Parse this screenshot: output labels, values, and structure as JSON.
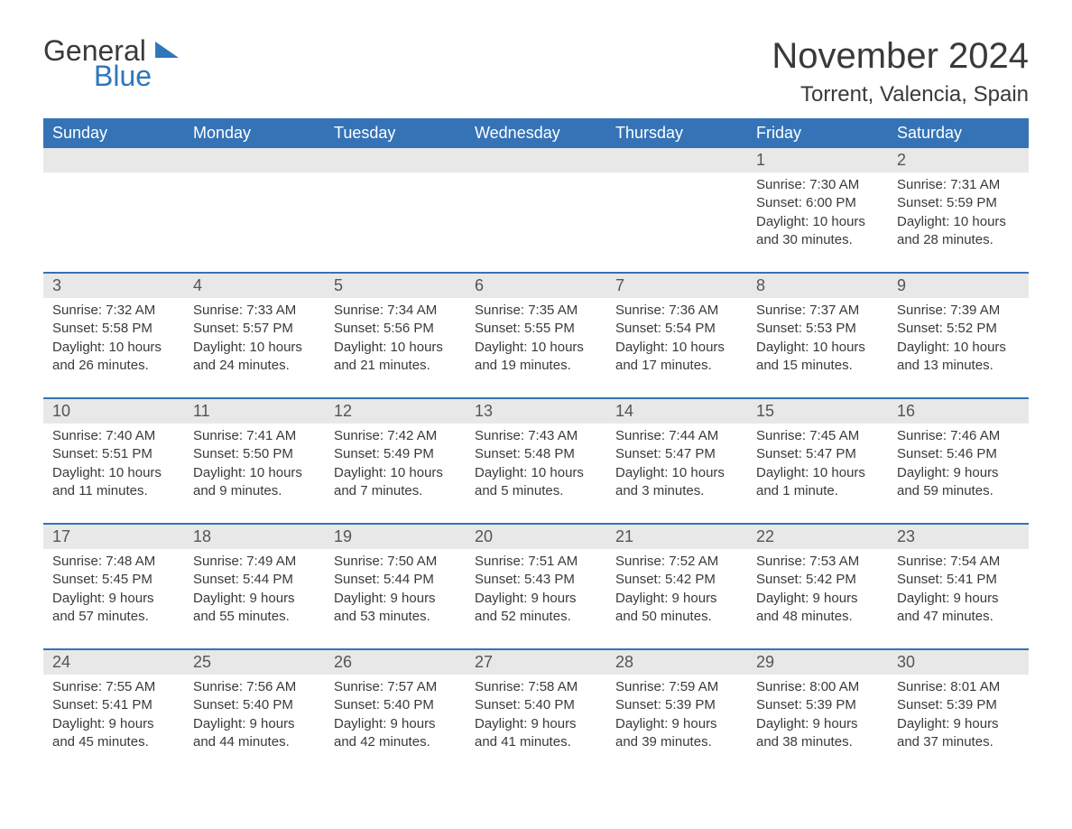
{
  "brand": {
    "line1": "General",
    "line2": "Blue",
    "accent_color": "#2f76bb"
  },
  "title": "November 2024",
  "location": "Torrent, Valencia, Spain",
  "colors": {
    "header_bg": "#3573b6",
    "header_text": "#ffffff",
    "daynum_bg": "#e8e8e8",
    "row_divider": "#3573b6",
    "body_text": "#3a3a3a",
    "background": "#ffffff"
  },
  "typography": {
    "title_fontsize": 40,
    "location_fontsize": 24,
    "weekday_fontsize": 18,
    "daynum_fontsize": 18,
    "body_fontsize": 15,
    "logo_fontsize": 32
  },
  "layout": {
    "columns": 7,
    "rows": 5,
    "leading_blanks": 5
  },
  "weekdays": [
    "Sunday",
    "Monday",
    "Tuesday",
    "Wednesday",
    "Thursday",
    "Friday",
    "Saturday"
  ],
  "weeks": [
    [
      null,
      null,
      null,
      null,
      null,
      {
        "day": "1",
        "sunrise": "Sunrise: 7:30 AM",
        "sunset": "Sunset: 6:00 PM",
        "daylight": "Daylight: 10 hours and 30 minutes."
      },
      {
        "day": "2",
        "sunrise": "Sunrise: 7:31 AM",
        "sunset": "Sunset: 5:59 PM",
        "daylight": "Daylight: 10 hours and 28 minutes."
      }
    ],
    [
      {
        "day": "3",
        "sunrise": "Sunrise: 7:32 AM",
        "sunset": "Sunset: 5:58 PM",
        "daylight": "Daylight: 10 hours and 26 minutes."
      },
      {
        "day": "4",
        "sunrise": "Sunrise: 7:33 AM",
        "sunset": "Sunset: 5:57 PM",
        "daylight": "Daylight: 10 hours and 24 minutes."
      },
      {
        "day": "5",
        "sunrise": "Sunrise: 7:34 AM",
        "sunset": "Sunset: 5:56 PM",
        "daylight": "Daylight: 10 hours and 21 minutes."
      },
      {
        "day": "6",
        "sunrise": "Sunrise: 7:35 AM",
        "sunset": "Sunset: 5:55 PM",
        "daylight": "Daylight: 10 hours and 19 minutes."
      },
      {
        "day": "7",
        "sunrise": "Sunrise: 7:36 AM",
        "sunset": "Sunset: 5:54 PM",
        "daylight": "Daylight: 10 hours and 17 minutes."
      },
      {
        "day": "8",
        "sunrise": "Sunrise: 7:37 AM",
        "sunset": "Sunset: 5:53 PM",
        "daylight": "Daylight: 10 hours and 15 minutes."
      },
      {
        "day": "9",
        "sunrise": "Sunrise: 7:39 AM",
        "sunset": "Sunset: 5:52 PM",
        "daylight": "Daylight: 10 hours and 13 minutes."
      }
    ],
    [
      {
        "day": "10",
        "sunrise": "Sunrise: 7:40 AM",
        "sunset": "Sunset: 5:51 PM",
        "daylight": "Daylight: 10 hours and 11 minutes."
      },
      {
        "day": "11",
        "sunrise": "Sunrise: 7:41 AM",
        "sunset": "Sunset: 5:50 PM",
        "daylight": "Daylight: 10 hours and 9 minutes."
      },
      {
        "day": "12",
        "sunrise": "Sunrise: 7:42 AM",
        "sunset": "Sunset: 5:49 PM",
        "daylight": "Daylight: 10 hours and 7 minutes."
      },
      {
        "day": "13",
        "sunrise": "Sunrise: 7:43 AM",
        "sunset": "Sunset: 5:48 PM",
        "daylight": "Daylight: 10 hours and 5 minutes."
      },
      {
        "day": "14",
        "sunrise": "Sunrise: 7:44 AM",
        "sunset": "Sunset: 5:47 PM",
        "daylight": "Daylight: 10 hours and 3 minutes."
      },
      {
        "day": "15",
        "sunrise": "Sunrise: 7:45 AM",
        "sunset": "Sunset: 5:47 PM",
        "daylight": "Daylight: 10 hours and 1 minute."
      },
      {
        "day": "16",
        "sunrise": "Sunrise: 7:46 AM",
        "sunset": "Sunset: 5:46 PM",
        "daylight": "Daylight: 9 hours and 59 minutes."
      }
    ],
    [
      {
        "day": "17",
        "sunrise": "Sunrise: 7:48 AM",
        "sunset": "Sunset: 5:45 PM",
        "daylight": "Daylight: 9 hours and 57 minutes."
      },
      {
        "day": "18",
        "sunrise": "Sunrise: 7:49 AM",
        "sunset": "Sunset: 5:44 PM",
        "daylight": "Daylight: 9 hours and 55 minutes."
      },
      {
        "day": "19",
        "sunrise": "Sunrise: 7:50 AM",
        "sunset": "Sunset: 5:44 PM",
        "daylight": "Daylight: 9 hours and 53 minutes."
      },
      {
        "day": "20",
        "sunrise": "Sunrise: 7:51 AM",
        "sunset": "Sunset: 5:43 PM",
        "daylight": "Daylight: 9 hours and 52 minutes."
      },
      {
        "day": "21",
        "sunrise": "Sunrise: 7:52 AM",
        "sunset": "Sunset: 5:42 PM",
        "daylight": "Daylight: 9 hours and 50 minutes."
      },
      {
        "day": "22",
        "sunrise": "Sunrise: 7:53 AM",
        "sunset": "Sunset: 5:42 PM",
        "daylight": "Daylight: 9 hours and 48 minutes."
      },
      {
        "day": "23",
        "sunrise": "Sunrise: 7:54 AM",
        "sunset": "Sunset: 5:41 PM",
        "daylight": "Daylight: 9 hours and 47 minutes."
      }
    ],
    [
      {
        "day": "24",
        "sunrise": "Sunrise: 7:55 AM",
        "sunset": "Sunset: 5:41 PM",
        "daylight": "Daylight: 9 hours and 45 minutes."
      },
      {
        "day": "25",
        "sunrise": "Sunrise: 7:56 AM",
        "sunset": "Sunset: 5:40 PM",
        "daylight": "Daylight: 9 hours and 44 minutes."
      },
      {
        "day": "26",
        "sunrise": "Sunrise: 7:57 AM",
        "sunset": "Sunset: 5:40 PM",
        "daylight": "Daylight: 9 hours and 42 minutes."
      },
      {
        "day": "27",
        "sunrise": "Sunrise: 7:58 AM",
        "sunset": "Sunset: 5:40 PM",
        "daylight": "Daylight: 9 hours and 41 minutes."
      },
      {
        "day": "28",
        "sunrise": "Sunrise: 7:59 AM",
        "sunset": "Sunset: 5:39 PM",
        "daylight": "Daylight: 9 hours and 39 minutes."
      },
      {
        "day": "29",
        "sunrise": "Sunrise: 8:00 AM",
        "sunset": "Sunset: 5:39 PM",
        "daylight": "Daylight: 9 hours and 38 minutes."
      },
      {
        "day": "30",
        "sunrise": "Sunrise: 8:01 AM",
        "sunset": "Sunset: 5:39 PM",
        "daylight": "Daylight: 9 hours and 37 minutes."
      }
    ]
  ]
}
